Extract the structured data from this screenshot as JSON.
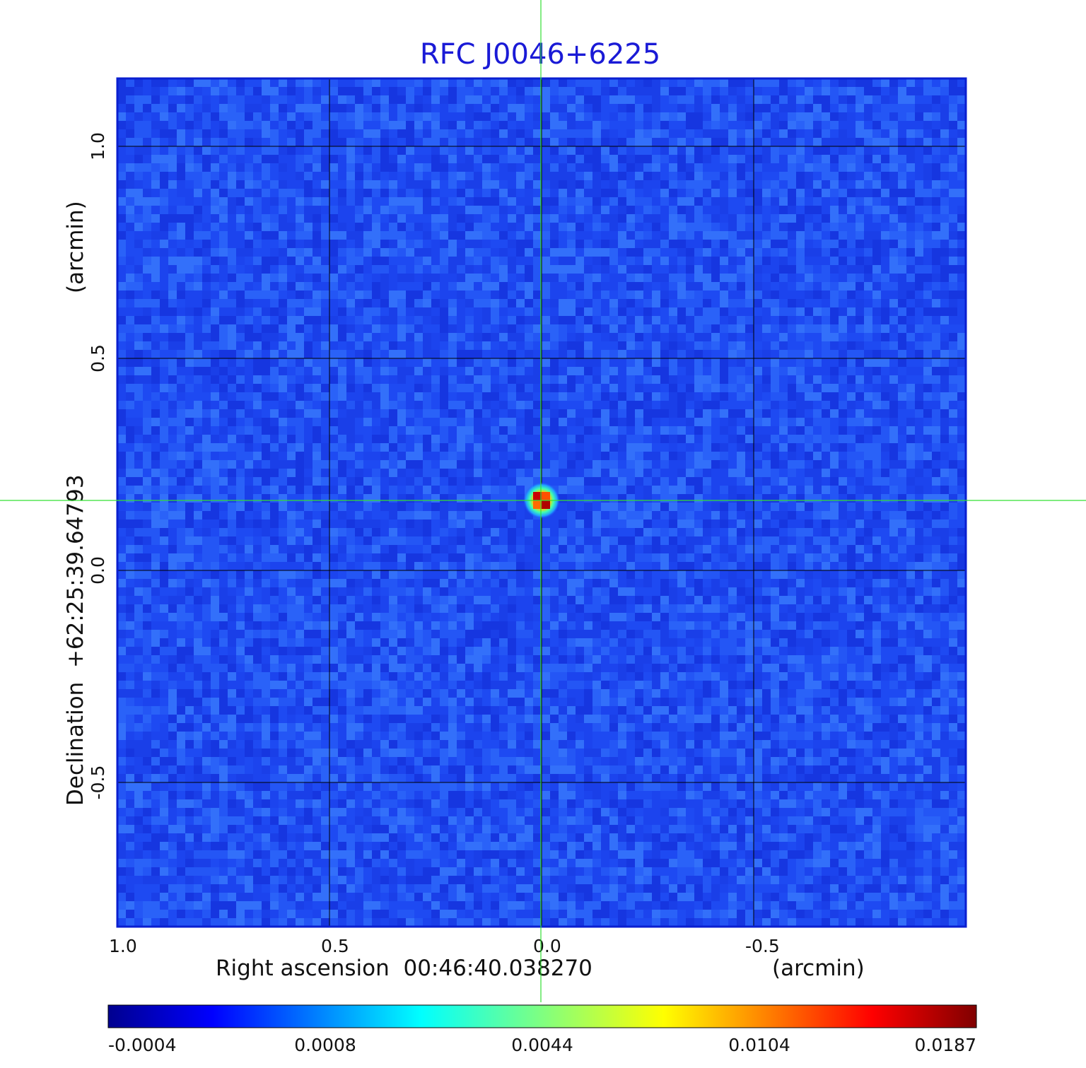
{
  "chart_data": {
    "type": "heatmap",
    "title": "RFC J0046+6225",
    "xlabel": "Right ascension  00:46:40.038270",
    "xlabel_unit": "(arcmin)",
    "ylabel": "Declination  +62:25:39.64793",
    "ylabel_unit": "(arcmin)",
    "x_ticks": [
      {
        "value": 1.0,
        "label": "1.0"
      },
      {
        "value": 0.5,
        "label": "0.5"
      },
      {
        "value": 0.0,
        "label": "0.0"
      },
      {
        "value": -0.5,
        "label": "-0.5"
      }
    ],
    "y_ticks": [
      {
        "value": 1.0,
        "label": "1.0"
      },
      {
        "value": 0.5,
        "label": "0.5"
      },
      {
        "value": 0.0,
        "label": "0.0"
      },
      {
        "value": -0.5,
        "label": "-0.5"
      }
    ],
    "xlim": [
      1.0,
      -1.0
    ],
    "ylim": [
      -0.84,
      1.16
    ],
    "grid": true,
    "crosshair": {
      "x": 0.0,
      "y": 0.165
    },
    "source": {
      "x": 0.0,
      "y": 0.165,
      "peak": 0.0187
    },
    "colormap": "jet",
    "colorbar": {
      "ticks": [
        {
          "value": -0.0004,
          "label": "-0.0004"
        },
        {
          "value": 0.0008,
          "label": "0.0008"
        },
        {
          "value": 0.0044,
          "label": "0.0044"
        },
        {
          "value": 0.0104,
          "label": "0.0104"
        },
        {
          "value": 0.0187,
          "label": "0.0187"
        }
      ]
    },
    "colors": {
      "title": "#1a1ad6",
      "background_noise": "#1f4ff5",
      "grid": "#000000",
      "crosshair": "#33e033",
      "frame": "#0a1fd0"
    }
  }
}
